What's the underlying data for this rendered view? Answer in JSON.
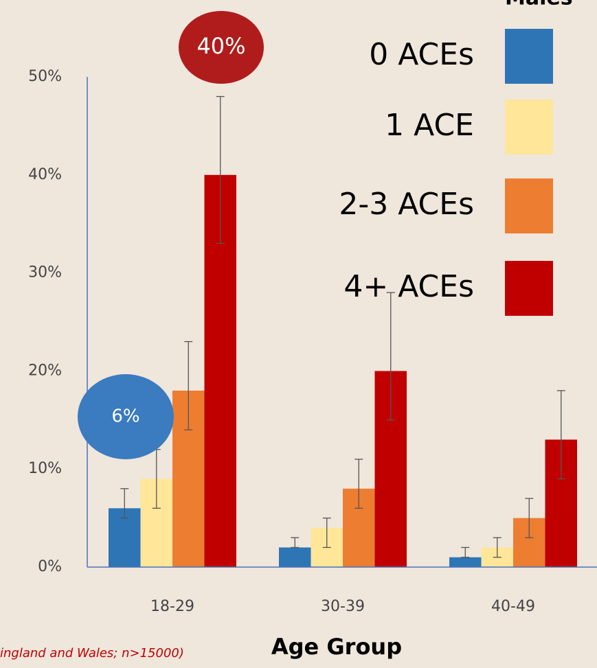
{
  "chart_data": {
    "type": "bar",
    "legend_title": "Males",
    "x_label": "Age Group",
    "source": "ingland and Wales; n>15000)",
    "categories": [
      "18-29",
      "30-39",
      "40-49"
    ],
    "series": [
      {
        "name": "0 ACEs",
        "color": "#2e75b6",
        "values": [
          6,
          2,
          1
        ],
        "ci_low": [
          5,
          2,
          1
        ],
        "ci_high": [
          8,
          3,
          2
        ]
      },
      {
        "name": "1 ACE",
        "color": "#ffe699",
        "values": [
          9,
          4,
          2
        ],
        "ci_low": [
          6,
          2,
          1
        ],
        "ci_high": [
          12,
          5,
          3
        ]
      },
      {
        "name": "2-3 ACEs",
        "color": "#ed7d31",
        "values": [
          18,
          8,
          5
        ],
        "ci_low": [
          14,
          6,
          3
        ],
        "ci_high": [
          23,
          11,
          7
        ]
      },
      {
        "name": "4+ ACEs",
        "color": "#c00000",
        "values": [
          40,
          20,
          13
        ],
        "ci_low": [
          33,
          15,
          9
        ],
        "ci_high": [
          48,
          28,
          18
        ]
      }
    ],
    "ylim": [
      0,
      50
    ],
    "yticks": [
      {
        "value": 0,
        "label": "0%"
      },
      {
        "value": 10,
        "label": "10%"
      },
      {
        "value": 20,
        "label": "20%"
      },
      {
        "value": 30,
        "label": "30%"
      },
      {
        "value": 40,
        "label": "40%"
      },
      {
        "value": 50,
        "label": "50%"
      }
    ],
    "annotations": [
      {
        "text": "40%",
        "color": "#b01c1c"
      },
      {
        "text": "6%",
        "color": "#3b7bc0"
      }
    ]
  }
}
